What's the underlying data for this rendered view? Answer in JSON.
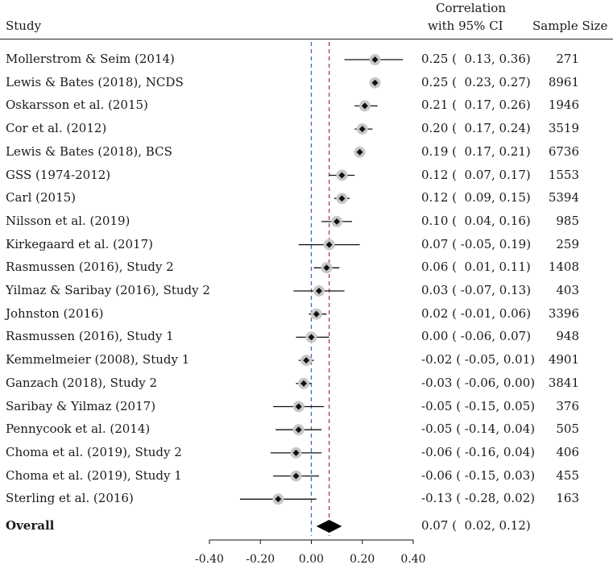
{
  "chart_data": {
    "type": "forest",
    "headers": {
      "study": "Study",
      "ci_line1": "Correlation",
      "ci_line2": "with 95% CI",
      "n": "Sample Size"
    },
    "studies": [
      {
        "label": "Mollerstrom & Seim (2014)",
        "r": 0.25,
        "lo": 0.13,
        "hi": 0.36,
        "ci_text": "0.25 (  0.13, 0.36)",
        "n": "271"
      },
      {
        "label": "Lewis & Bates (2018), NCDS",
        "r": 0.25,
        "lo": 0.23,
        "hi": 0.27,
        "ci_text": "0.25 (  0.23, 0.27)",
        "n": "8961"
      },
      {
        "label": "Oskarsson et al. (2015)",
        "r": 0.21,
        "lo": 0.17,
        "hi": 0.26,
        "ci_text": "0.21 (  0.17, 0.26)",
        "n": "1946"
      },
      {
        "label": "Cor et al. (2012)",
        "r": 0.2,
        "lo": 0.17,
        "hi": 0.24,
        "ci_text": "0.20 (  0.17, 0.24)",
        "n": "3519"
      },
      {
        "label": "Lewis & Bates (2018), BCS",
        "r": 0.19,
        "lo": 0.17,
        "hi": 0.21,
        "ci_text": "0.19 (  0.17, 0.21)",
        "n": "6736"
      },
      {
        "label": "GSS (1974-2012)",
        "r": 0.12,
        "lo": 0.07,
        "hi": 0.17,
        "ci_text": "0.12 (  0.07, 0.17)",
        "n": "1553"
      },
      {
        "label": "Carl (2015)",
        "r": 0.12,
        "lo": 0.09,
        "hi": 0.15,
        "ci_text": "0.12 (  0.09, 0.15)",
        "n": "5394"
      },
      {
        "label": "Nilsson et al. (2019)",
        "r": 0.1,
        "lo": 0.04,
        "hi": 0.16,
        "ci_text": "0.10 (  0.04, 0.16)",
        "n": "985"
      },
      {
        "label": "Kirkegaard et al. (2017)",
        "r": 0.07,
        "lo": -0.05,
        "hi": 0.19,
        "ci_text": "0.07 ( -0.05, 0.19)",
        "n": "259"
      },
      {
        "label": "Rasmussen (2016), Study 2",
        "r": 0.06,
        "lo": 0.01,
        "hi": 0.11,
        "ci_text": "0.06 (  0.01, 0.11)",
        "n": "1408"
      },
      {
        "label": "Yilmaz & Saribay (2016), Study 2",
        "r": 0.03,
        "lo": -0.07,
        "hi": 0.13,
        "ci_text": "0.03 ( -0.07, 0.13)",
        "n": "403"
      },
      {
        "label": "Johnston (2016)",
        "r": 0.02,
        "lo": -0.01,
        "hi": 0.06,
        "ci_text": "0.02 ( -0.01, 0.06)",
        "n": "3396"
      },
      {
        "label": "Rasmussen (2016), Study 1",
        "r": 0.0,
        "lo": -0.06,
        "hi": 0.07,
        "ci_text": "0.00 ( -0.06, 0.07)",
        "n": "948"
      },
      {
        "label": "Kemmelmeier (2008), Study 1",
        "r": -0.02,
        "lo": -0.05,
        "hi": 0.01,
        "ci_text": "-0.02 ( -0.05, 0.01)",
        "n": "4901"
      },
      {
        "label": "Ganzach (2018), Study 2",
        "r": -0.03,
        "lo": -0.06,
        "hi": 0.0,
        "ci_text": "-0.03 ( -0.06, 0.00)",
        "n": "3841"
      },
      {
        "label": "Saribay & Yilmaz (2017)",
        "r": -0.05,
        "lo": -0.15,
        "hi": 0.05,
        "ci_text": "-0.05 ( -0.15, 0.05)",
        "n": "376"
      },
      {
        "label": "Pennycook et al. (2014)",
        "r": -0.05,
        "lo": -0.14,
        "hi": 0.04,
        "ci_text": "-0.05 ( -0.14, 0.04)",
        "n": "505"
      },
      {
        "label": "Choma et al. (2019), Study 2",
        "r": -0.06,
        "lo": -0.16,
        "hi": 0.04,
        "ci_text": "-0.06 ( -0.16, 0.04)",
        "n": "406"
      },
      {
        "label": "Choma et al. (2019), Study 1",
        "r": -0.06,
        "lo": -0.15,
        "hi": 0.03,
        "ci_text": "-0.06 ( -0.15, 0.03)",
        "n": "455"
      },
      {
        "label": "Sterling et al. (2016)",
        "r": -0.13,
        "lo": -0.28,
        "hi": 0.02,
        "ci_text": "-0.13 ( -0.28, 0.02)",
        "n": "163"
      }
    ],
    "overall": {
      "label": "Overall",
      "r": 0.07,
      "lo": 0.02,
      "hi": 0.12,
      "ci_text": "0.07 (  0.02, 0.12)"
    },
    "null_line": 0.0,
    "xlim": [
      -0.4,
      0.4
    ],
    "xticks": [
      -0.4,
      -0.2,
      0.0,
      0.2,
      0.4
    ],
    "xtick_labels": [
      "-0.40",
      "-0.20",
      "0.00",
      "0.20",
      "0.40"
    ],
    "colors": {
      "null_line": "#3a6ea5",
      "overall_line": "#b03a3a",
      "marker_halo": "#c8c8c8",
      "marker": "#111111"
    }
  }
}
